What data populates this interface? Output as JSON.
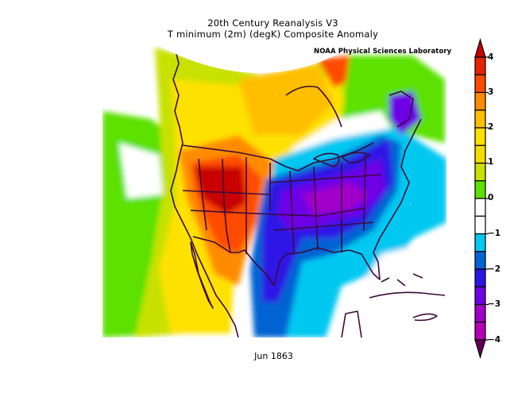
{
  "figure": {
    "title_line1": "20th Century Reanalysis V3",
    "title_line2": "T minimum (2m) (degK) Composite Anomaly",
    "credit": "NOAA Physical Sciences Laboratory",
    "date_label": "Jun 1863",
    "variable": "T minimum (2m)",
    "units": "degK",
    "region": "North America (western Canada, USA, Mexico, Caribbean)"
  },
  "colorbar": {
    "orientation": "vertical",
    "position": "right",
    "min": -4,
    "max": 4,
    "extend": "both",
    "tick_labels": [
      "4",
      "3",
      "2",
      "1",
      "0",
      "-1",
      "-2",
      "-3",
      "-4"
    ],
    "levels": [
      4,
      3.5,
      3,
      2.5,
      2,
      1.5,
      1,
      0.5,
      0,
      -0.5,
      -1,
      -1.5,
      -2,
      -2.5,
      -3,
      -3.5,
      -4
    ],
    "colors_top_to_bottom": [
      "#e62200",
      "#ff4b00",
      "#ff8c00",
      "#ffbf00",
      "#ffe100",
      "#f5dc00",
      "#c8e100",
      "#5ce100",
      "#ffffff",
      "#ffffff",
      "#00c8f0",
      "#0064d2",
      "#2d14e6",
      "#6e00e6",
      "#a000c8",
      "#b400b4",
      "#7d0082"
    ],
    "over_color": "#c80000",
    "under_color": "#64005a"
  },
  "chart_data": {
    "type": "heatmap",
    "title": "20th Century Reanalysis V3 — T minimum (2m) (degK) Composite Anomaly",
    "subtitle": "Jun 1863",
    "xlabel": "",
    "ylabel": "",
    "colorbar_label": "degK anomaly",
    "range": [
      -4,
      4
    ],
    "legend_position": "right",
    "grid": false,
    "regions": [
      {
        "name": "Great Basin / Wyoming / Colorado",
        "anomaly_approx": 4
      },
      {
        "name": "Arizona / northern Mexico",
        "anomaly_approx": 3.5
      },
      {
        "name": "Northern Rockies / central Canada",
        "anomaly_approx": 2.5
      },
      {
        "name": "Baja California / Pacific coast Mexico",
        "anomaly_approx": 2
      },
      {
        "name": "Eastern Pacific offshore",
        "anomaly_approx": 1
      },
      {
        "name": "Hudson Bay area / eastern Canada",
        "anomaly_approx": 1
      },
      {
        "name": "Great Lakes / Quebec coast",
        "anomaly_approx": 0
      },
      {
        "name": "Ohio Valley / Mid-Atlantic / Tennessee",
        "anomaly_approx": -3
      },
      {
        "name": "Newfoundland",
        "anomaly_approx": -2.5
      },
      {
        "name": "Texas / Southeast US",
        "anomaly_approx": -2
      },
      {
        "name": "Gulf of Mexico",
        "anomaly_approx": -1
      },
      {
        "name": "Western Atlantic",
        "anomaly_approx": -1
      },
      {
        "name": "Caribbean / Bahamas",
        "anomaly_approx": 0
      }
    ]
  }
}
